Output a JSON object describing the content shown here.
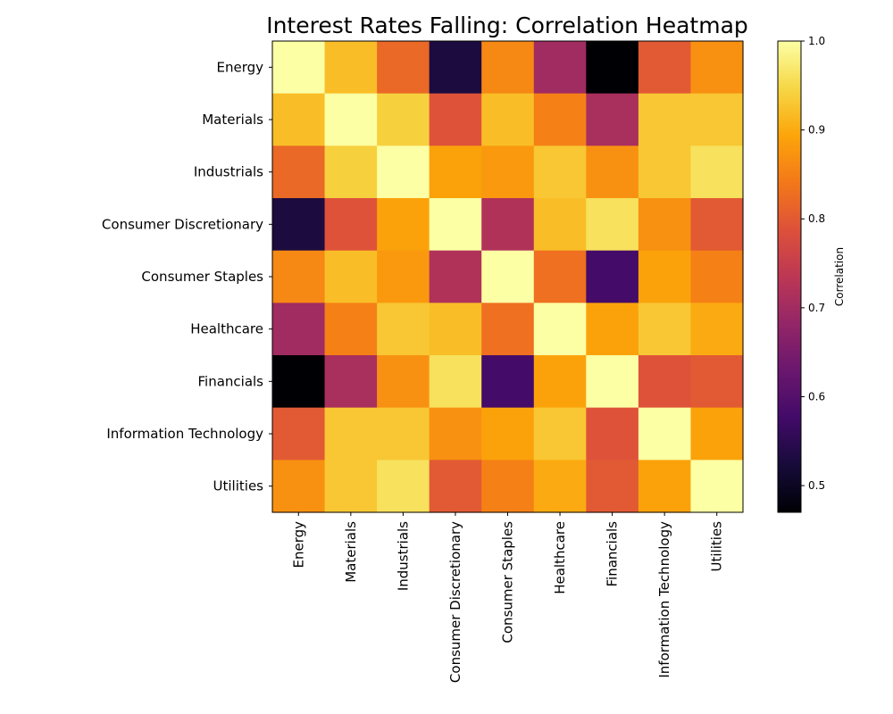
{
  "chart_data": {
    "type": "heatmap",
    "title": "Interest Rates Falling: Correlation Heatmap",
    "row_labels": [
      "Energy",
      "Materials",
      "Industrials",
      "Consumer Discretionary",
      "Consumer Staples",
      "Healthcare",
      "Financials",
      "Information Technology",
      "Utilities"
    ],
    "col_labels": [
      "Energy",
      "Materials",
      "Industrials",
      "Consumer Discretionary",
      "Consumer Staples",
      "Healthcare",
      "Financials",
      "Information Technology",
      "Utilities"
    ],
    "values": [
      [
        1.0,
        0.92,
        0.82,
        0.53,
        0.86,
        0.7,
        0.47,
        0.8,
        0.87
      ],
      [
        0.92,
        1.0,
        0.94,
        0.79,
        0.92,
        0.85,
        0.71,
        0.93,
        0.93
      ],
      [
        0.82,
        0.94,
        1.0,
        0.89,
        0.88,
        0.93,
        0.87,
        0.93,
        0.96
      ],
      [
        0.53,
        0.79,
        0.89,
        1.0,
        0.72,
        0.92,
        0.96,
        0.87,
        0.8
      ],
      [
        0.86,
        0.92,
        0.88,
        0.72,
        1.0,
        0.83,
        0.58,
        0.89,
        0.85
      ],
      [
        0.7,
        0.85,
        0.93,
        0.92,
        0.83,
        1.0,
        0.89,
        0.93,
        0.9
      ],
      [
        0.47,
        0.71,
        0.87,
        0.96,
        0.58,
        0.89,
        1.0,
        0.79,
        0.8
      ],
      [
        0.8,
        0.93,
        0.93,
        0.87,
        0.89,
        0.93,
        0.79,
        1.0,
        0.89
      ],
      [
        0.87,
        0.93,
        0.96,
        0.8,
        0.85,
        0.9,
        0.8,
        0.89,
        1.0
      ]
    ],
    "colormap": "inferno",
    "vmin": 0.47,
    "vmax": 1.0,
    "colorbar": {
      "label": "Correlation",
      "ticks": [
        0.5,
        0.6,
        0.7,
        0.8,
        0.9,
        1.0
      ],
      "tick_labels": [
        "0.5",
        "0.6",
        "0.7",
        "0.8",
        "0.9",
        "1.0"
      ]
    },
    "grid": false,
    "legend": "colorbar right"
  }
}
